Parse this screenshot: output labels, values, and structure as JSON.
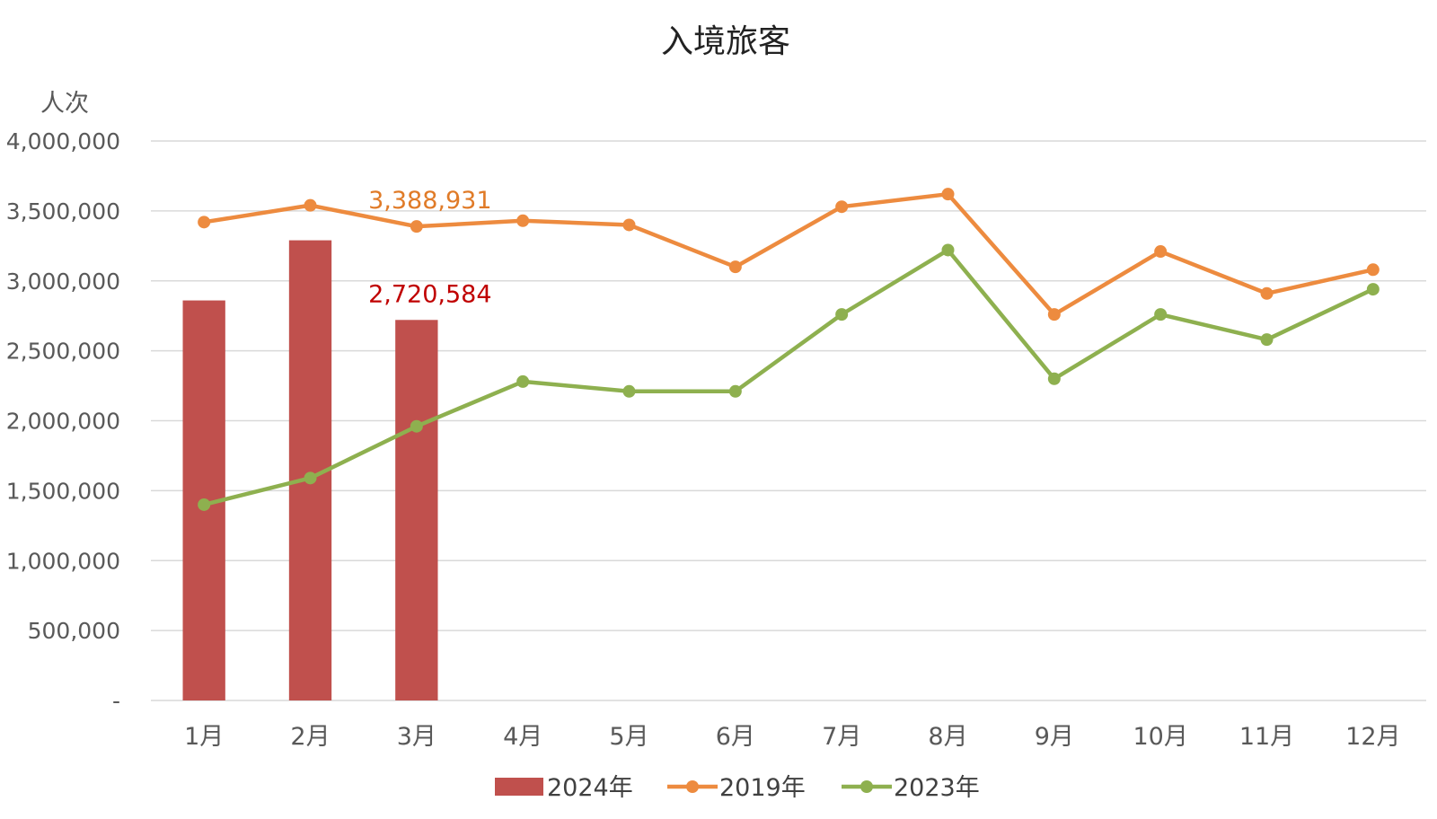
{
  "chart_data": {
    "type": "bar",
    "title": "入境旅客",
    "unit_label": "人次",
    "ylim": [
      0,
      4000000
    ],
    "y_ticks": [
      {
        "value": 0,
        "label": "-"
      },
      {
        "value": 500000,
        "label": "500,000"
      },
      {
        "value": 1000000,
        "label": "1,000,000"
      },
      {
        "value": 1500000,
        "label": "1,500,000"
      },
      {
        "value": 2000000,
        "label": "2,000,000"
      },
      {
        "value": 2500000,
        "label": "2,500,000"
      },
      {
        "value": 3000000,
        "label": "3,000,000"
      },
      {
        "value": 3500000,
        "label": "3,500,000"
      },
      {
        "value": 4000000,
        "label": "4,000,000"
      }
    ],
    "grid": true,
    "legend_position": "bottom",
    "categories": [
      "1月",
      "2月",
      "3月",
      "4月",
      "5月",
      "6月",
      "7月",
      "8月",
      "9月",
      "10月",
      "11月",
      "12月"
    ],
    "series": [
      {
        "name": "2024年",
        "type": "bar",
        "color": "#c0504d",
        "values": [
          2860000,
          3290000,
          2720584,
          null,
          null,
          null,
          null,
          null,
          null,
          null,
          null,
          null
        ]
      },
      {
        "name": "2019年",
        "type": "line",
        "color": "#ed8b3f",
        "values": [
          3420000,
          3540000,
          3388931,
          3430000,
          3400000,
          3100000,
          3530000,
          3620000,
          2760000,
          3210000,
          2910000,
          3080000
        ]
      },
      {
        "name": "2023年",
        "type": "line",
        "color": "#8eb04f",
        "values": [
          1400000,
          1590000,
          1960000,
          2280000,
          2210000,
          2210000,
          2760000,
          3220000,
          2300000,
          2760000,
          2580000,
          2940000
        ]
      }
    ],
    "annotations": [
      {
        "text": "3,388,931",
        "series": "2019年",
        "category": "3月",
        "color": "#e07b28"
      },
      {
        "text": "2,720,584",
        "series": "2024年",
        "category": "3月",
        "color": "#c00000"
      }
    ]
  }
}
